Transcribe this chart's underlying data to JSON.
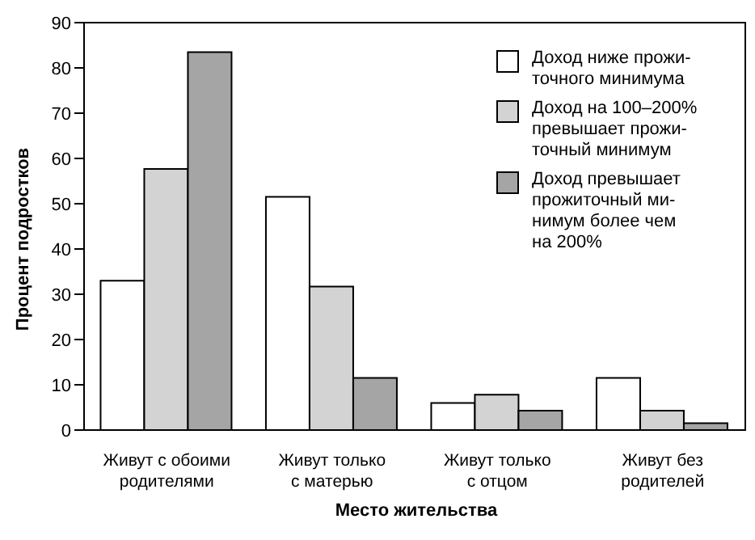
{
  "chart_data": {
    "type": "bar",
    "xlabel": "Место жительства",
    "ylabel": "Процент подростков",
    "categories": [
      "Живут с обоими\nродителями",
      "Живут только\nс матерью",
      "Живут только\nс отцом",
      "Живут без\nродителей"
    ],
    "series": [
      {
        "name": "Доход ниже прожи-\nточного минимума",
        "color": "#ffffff",
        "values": [
          33,
          51.5,
          6,
          11.5
        ]
      },
      {
        "name": "Доход на 100–200%\nпревышает прожи-\nточный минимум",
        "color": "#d3d3d3",
        "values": [
          57.7,
          31.7,
          7.8,
          4.3
        ]
      },
      {
        "name": "Доход превышает\nпрожиточный ми-\nнимум более чем\nна 200%",
        "color": "#a5a5a5",
        "values": [
          83.5,
          11.5,
          4.3,
          1.5
        ]
      }
    ],
    "ylim": [
      0,
      90
    ],
    "yticks": [
      0,
      10,
      20,
      30,
      40,
      50,
      60,
      70,
      80,
      90
    ],
    "grid": false,
    "legend": "top right"
  }
}
